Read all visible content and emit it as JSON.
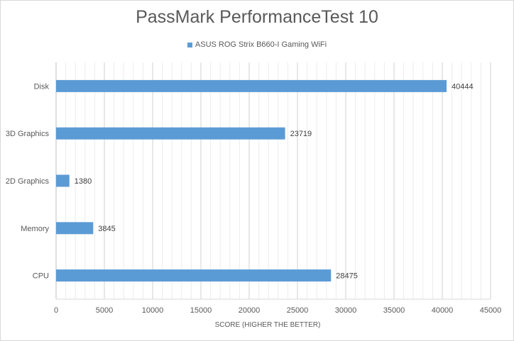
{
  "chart_data": {
    "type": "bar",
    "orientation": "horizontal",
    "title": "PassMark PerformanceTest 10",
    "xlabel": "SCORE (HIGHER THE BETTER)",
    "ylabel": "",
    "categories": [
      "Disk",
      "3D Graphics",
      "2D Graphics",
      "Memory",
      "CPU"
    ],
    "series": [
      {
        "name": "ASUS ROG Strix B660-I Gaming WiFi",
        "values": [
          40444,
          23719,
          1380,
          3845,
          28475
        ],
        "color": "#5b9bd5"
      }
    ],
    "xlim": [
      0,
      45000
    ],
    "xticks": [
      0,
      5000,
      10000,
      15000,
      20000,
      25000,
      30000,
      35000,
      40000,
      45000
    ],
    "grid": true,
    "legend_position": "top"
  }
}
